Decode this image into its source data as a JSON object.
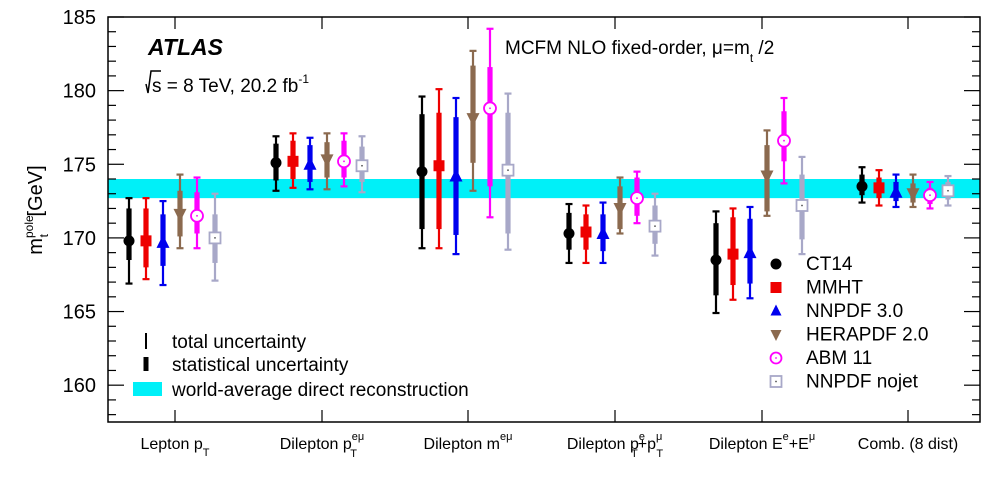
{
  "chart_data": {
    "type": "scatter",
    "title": "",
    "experiment": "ATLAS",
    "energy_line": {
      "sqrt": "s",
      "text": " = 8 TeV, 20.2 fb",
      "sup": "-1"
    },
    "mcfm_label": {
      "main": "MCFM NLO fixed-order, μ=m",
      "sub": "t",
      "tail": " /2"
    },
    "ylabel": {
      "m": "m",
      "sup": "pole",
      "sub": "t",
      "unit": " [GeV]"
    },
    "ylim": [
      157.5,
      185
    ],
    "yticks": [
      160,
      165,
      170,
      175,
      180,
      185
    ],
    "world_average": {
      "low": 172.7,
      "high": 174.0,
      "color": "#00f0f8",
      "label": "world-average direct reconstruction"
    },
    "uncertainty_legend": {
      "total": "total uncertainty",
      "stat": "statistical uncertainty"
    },
    "categories": [
      {
        "main": "Lepton p",
        "sub": "T"
      },
      {
        "main": "Dilepton p",
        "sub": "T",
        "sup": "eμ"
      },
      {
        "main": "Dilepton m",
        "sup": "eμ"
      },
      {
        "main": "Dilepton p",
        "sub": "T",
        "sup": "e",
        "mid": "+p",
        "sub2": "T",
        "sup2": "μ"
      },
      {
        "main": "Dilepton E",
        "sup": "e",
        "mid": "+E",
        "sup2": "μ"
      },
      {
        "main": "Comb. (8 dist)"
      }
    ],
    "series": [
      {
        "name": "CT14",
        "color": "#000000",
        "marker": "circle",
        "values": [
          169.8,
          175.1,
          174.5,
          170.3,
          168.5,
          173.5
        ],
        "stat_low": [
          168.5,
          173.9,
          170.6,
          169.2,
          166.1,
          172.9
        ],
        "stat_high": [
          172.0,
          176.4,
          178.4,
          171.7,
          171.0,
          174.3
        ],
        "tot_low": [
          166.9,
          173.2,
          169.3,
          168.3,
          164.9,
          172.4
        ],
        "tot_high": [
          172.7,
          176.9,
          179.6,
          172.3,
          171.8,
          174.8
        ]
      },
      {
        "name": "MMHT",
        "color": "#ee0000",
        "marker": "square",
        "values": [
          169.8,
          175.2,
          174.9,
          170.4,
          168.9,
          173.4
        ],
        "stat_low": [
          168.0,
          174.0,
          170.6,
          169.2,
          166.8,
          172.7
        ],
        "stat_high": [
          172.0,
          176.6,
          178.5,
          171.6,
          171.4,
          174.1
        ],
        "tot_low": [
          167.2,
          173.4,
          169.3,
          168.3,
          165.8,
          172.2
        ],
        "tot_high": [
          172.7,
          177.1,
          180.1,
          172.2,
          172.0,
          174.6
        ]
      },
      {
        "name": "NNPDF 3.0",
        "color": "#0000ee",
        "marker": "triangle-up",
        "values": [
          169.7,
          175.0,
          174.2,
          170.3,
          169.0,
          173.1
        ],
        "stat_low": [
          168.1,
          173.8,
          170.2,
          169.1,
          166.9,
          172.5
        ],
        "stat_high": [
          171.6,
          176.3,
          178.2,
          171.6,
          171.3,
          173.8
        ],
        "tot_low": [
          166.8,
          173.3,
          168.9,
          168.3,
          165.9,
          172.1
        ],
        "tot_high": [
          172.5,
          176.8,
          179.5,
          172.4,
          172.1,
          174.3
        ]
      },
      {
        "name": "HERAPDF 2.0",
        "color": "#8b6a4f",
        "marker": "triangle-down",
        "values": [
          171.6,
          175.3,
          178.1,
          172.0,
          174.2,
          173.0
        ],
        "stat_low": [
          170.1,
          174.1,
          175.1,
          170.6,
          171.8,
          172.4
        ],
        "stat_high": [
          173.2,
          176.5,
          181.7,
          173.5,
          176.3,
          173.7
        ],
        "tot_low": [
          169.3,
          173.3,
          173.2,
          170.3,
          171.5,
          172.1
        ],
        "tot_high": [
          174.3,
          177.1,
          182.7,
          174.1,
          177.3,
          174.3
        ]
      },
      {
        "name": "ABM 11",
        "color": "#ff00ff",
        "marker": "open-circle",
        "values": [
          171.5,
          175.2,
          178.8,
          172.7,
          176.6,
          172.9
        ],
        "stat_low": [
          170.3,
          174.1,
          173.5,
          171.5,
          175.2,
          172.3
        ],
        "stat_high": [
          173.1,
          176.6,
          181.6,
          174.1,
          178.6,
          173.4
        ],
        "tot_low": [
          169.3,
          173.5,
          171.4,
          171.0,
          173.7,
          172.0
        ],
        "tot_high": [
          174.1,
          177.1,
          184.2,
          174.5,
          179.5,
          173.8
        ]
      },
      {
        "name": "NNPDF nojet",
        "color": "#a8a8c8",
        "marker": "open-square",
        "values": [
          170.0,
          174.9,
          174.6,
          170.8,
          172.2,
          173.2
        ],
        "stat_low": [
          168.3,
          173.8,
          170.3,
          169.6,
          169.9,
          172.6
        ],
        "stat_high": [
          171.6,
          176.2,
          178.5,
          172.2,
          174.3,
          173.8
        ],
        "tot_low": [
          167.1,
          173.1,
          169.2,
          168.8,
          168.9,
          172.2
        ],
        "tot_high": [
          173.0,
          176.9,
          179.8,
          173.0,
          175.5,
          174.2
        ]
      }
    ]
  }
}
